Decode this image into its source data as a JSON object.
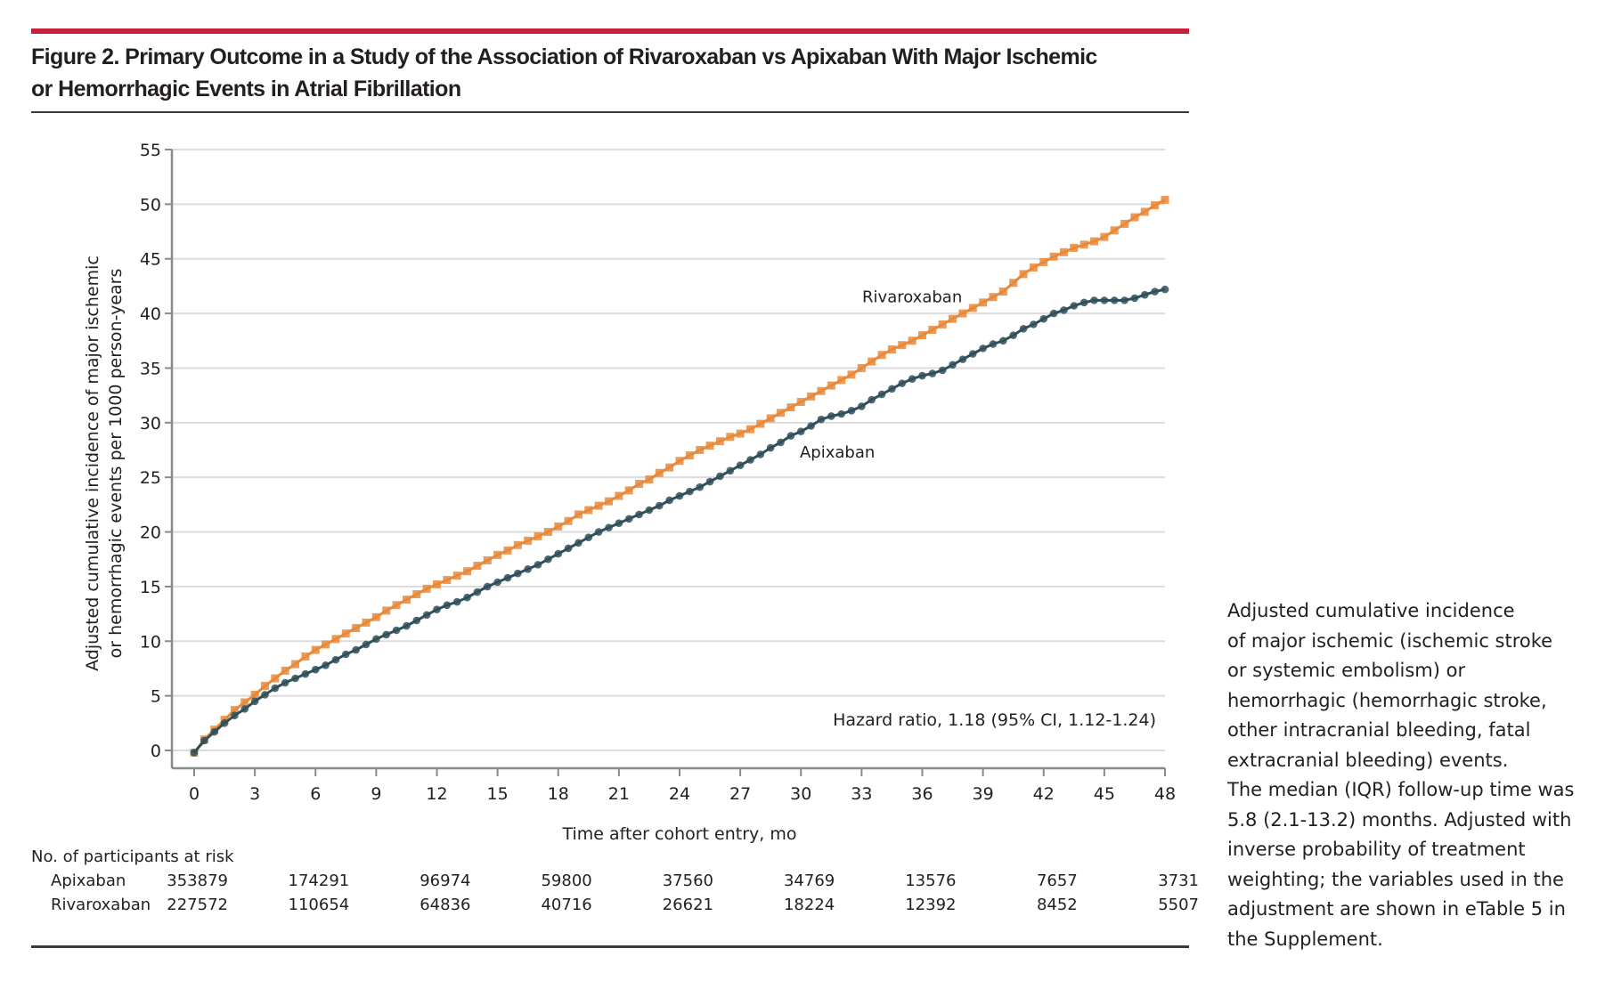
{
  "figure": {
    "title_line1": "Figure 2. Primary Outcome in a Study of the Association of Rivaroxaban vs Apixaban With Major Ischemic",
    "title_line2": "or Hemorrhagic Events in Atrial Fibrillation",
    "accent_color": "#c8203b",
    "caption": "Adjusted cumulative incidence of major ischemic (ischemic stroke or systemic embolism) or hemorrhagic (hemorrhagic stroke, other intracranial bleeding, fatal extracranial bleeding) events. The median (IQR) follow-up time was 5.8 (2.1-13.2) months. Adjusted with inverse probability of treatment weighting; the variables used in the adjustment are shown in eTable 5 in the Supplement.",
    "caption_lines": [
      "Adjusted cumulative incidence",
      "of major ischemic (ischemic stroke",
      "or systemic embolism) or",
      "hemorrhagic (hemorrhagic stroke,",
      "other intracranial bleeding, fatal",
      "extracranial bleeding) events.",
      "The median (IQR) follow-up time was",
      "5.8 (2.1-13.2) months. Adjusted with",
      "inverse probability of treatment",
      "weighting; the variables used in the",
      "adjustment are shown in eTable 5 in",
      "the Supplement."
    ]
  },
  "chart_data": {
    "type": "line",
    "title": "Figure 2. Primary Outcome in a Study of the Association of Rivaroxaban vs Apixaban With Major Ischemic or Hemorrhagic Events in Atrial Fibrillation",
    "xlabel": "Time after cohort entry, mo",
    "ylabel_line1": "Adjusted cumulative incidence of major ischemic",
    "ylabel_line2": "or hemorrhagic events per 1000 person-years",
    "xlim": [
      0,
      48
    ],
    "ylim": [
      0,
      55
    ],
    "x_ticks": [
      0,
      3,
      6,
      9,
      12,
      15,
      18,
      21,
      24,
      27,
      30,
      33,
      36,
      39,
      42,
      45,
      48
    ],
    "y_ticks": [
      0,
      5,
      10,
      15,
      20,
      25,
      30,
      35,
      40,
      45,
      50,
      55
    ],
    "grid": "horizontal",
    "annotation": "Hazard ratio, 1.18 (95% CI, 1.12-1.24)",
    "series": [
      {
        "name": "Rivaroxaban",
        "color": "#e8893a",
        "marker": "square",
        "label_at": [
          35.5,
          41.5
        ],
        "x": [
          0,
          0.5,
          1,
          1.5,
          2,
          2.5,
          3,
          3.5,
          4,
          4.5,
          5,
          5.5,
          6,
          6.5,
          7,
          7.5,
          8,
          8.5,
          9,
          9.5,
          10,
          10.5,
          11,
          11.5,
          12,
          12.5,
          13,
          13.5,
          14,
          14.5,
          15,
          15.5,
          16,
          16.5,
          17,
          17.5,
          18,
          18.5,
          19,
          19.5,
          20,
          20.5,
          21,
          21.5,
          22,
          22.5,
          23,
          23.5,
          24,
          24.5,
          25,
          25.5,
          26,
          26.5,
          27,
          27.5,
          28,
          28.5,
          29,
          29.5,
          30,
          30.5,
          31,
          31.5,
          32,
          32.5,
          33,
          33.5,
          34,
          34.5,
          35,
          35.5,
          36,
          36.5,
          37,
          37.5,
          38,
          38.5,
          39,
          39.5,
          40,
          40.5,
          41,
          41.5,
          42,
          42.5,
          43,
          43.5,
          44,
          44.5,
          45,
          45.5,
          46,
          46.5,
          47,
          47.5,
          48
        ],
        "y": [
          -0.2,
          1.0,
          1.9,
          2.8,
          3.7,
          4.4,
          5.1,
          5.9,
          6.6,
          7.3,
          7.9,
          8.6,
          9.2,
          9.7,
          10.2,
          10.7,
          11.2,
          11.7,
          12.2,
          12.8,
          13.3,
          13.8,
          14.3,
          14.8,
          15.2,
          15.6,
          16.0,
          16.4,
          16.9,
          17.4,
          17.9,
          18.3,
          18.8,
          19.2,
          19.6,
          20.0,
          20.5,
          21.0,
          21.6,
          22.0,
          22.4,
          22.8,
          23.3,
          23.8,
          24.4,
          24.8,
          25.4,
          25.9,
          26.5,
          27.0,
          27.5,
          27.9,
          28.3,
          28.7,
          29.0,
          29.4,
          29.9,
          30.4,
          30.9,
          31.4,
          31.9,
          32.4,
          32.9,
          33.4,
          33.9,
          34.4,
          35.0,
          35.6,
          36.2,
          36.7,
          37.1,
          37.5,
          38.0,
          38.5,
          39.0,
          39.5,
          40.0,
          40.5,
          41.0,
          41.5,
          42.0,
          42.8,
          43.6,
          44.2,
          44.7,
          45.2,
          45.6,
          46.0,
          46.3,
          46.6,
          47.0,
          47.6,
          48.2,
          48.8,
          49.3,
          49.9,
          50.4
        ]
      },
      {
        "name": "Apixaban",
        "color": "#2f4f5a",
        "marker": "circle",
        "label_at": [
          31.8,
          27.3
        ],
        "x": [
          0,
          0.5,
          1,
          1.5,
          2,
          2.5,
          3,
          3.5,
          4,
          4.5,
          5,
          5.5,
          6,
          6.5,
          7,
          7.5,
          8,
          8.5,
          9,
          9.5,
          10,
          10.5,
          11,
          11.5,
          12,
          12.5,
          13,
          13.5,
          14,
          14.5,
          15,
          15.5,
          16,
          16.5,
          17,
          17.5,
          18,
          18.5,
          19,
          19.5,
          20,
          20.5,
          21,
          21.5,
          22,
          22.5,
          23,
          23.5,
          24,
          24.5,
          25,
          25.5,
          26,
          26.5,
          27,
          27.5,
          28,
          28.5,
          29,
          29.5,
          30,
          30.5,
          31,
          31.5,
          32,
          32.5,
          33,
          33.5,
          34,
          34.5,
          35,
          35.5,
          36,
          36.5,
          37,
          37.5,
          38,
          38.5,
          39,
          39.5,
          40,
          40.5,
          41,
          41.5,
          42,
          42.5,
          43,
          43.5,
          44,
          44.5,
          45,
          45.5,
          46,
          46.5,
          47,
          47.5,
          48
        ],
        "y": [
          -0.2,
          0.9,
          1.7,
          2.5,
          3.2,
          3.8,
          4.5,
          5.1,
          5.7,
          6.2,
          6.6,
          7.0,
          7.4,
          7.8,
          8.3,
          8.8,
          9.2,
          9.7,
          10.2,
          10.6,
          11.0,
          11.4,
          11.9,
          12.4,
          12.9,
          13.3,
          13.6,
          14.0,
          14.5,
          15.0,
          15.4,
          15.8,
          16.2,
          16.6,
          17.0,
          17.5,
          18.0,
          18.5,
          19.0,
          19.5,
          20.0,
          20.4,
          20.8,
          21.2,
          21.6,
          22.0,
          22.4,
          22.9,
          23.3,
          23.7,
          24.1,
          24.6,
          25.1,
          25.6,
          26.1,
          26.6,
          27.1,
          27.7,
          28.2,
          28.8,
          29.2,
          29.7,
          30.3,
          30.6,
          30.8,
          31.1,
          31.5,
          32.1,
          32.6,
          33.1,
          33.6,
          34.0,
          34.3,
          34.5,
          34.8,
          35.3,
          35.8,
          36.3,
          36.8,
          37.2,
          37.5,
          38.0,
          38.6,
          39.0,
          39.5,
          40.0,
          40.3,
          40.7,
          41.0,
          41.2,
          41.2,
          41.2,
          41.2,
          41.4,
          41.7,
          42.0,
          42.2
        ]
      }
    ]
  },
  "risk_table": {
    "title": "No. of participants at risk",
    "time_points": [
      0,
      6,
      12,
      18,
      24,
      30,
      36,
      42,
      48
    ],
    "rows": [
      {
        "label": "Apixaban",
        "values": [
          "353879",
          "174291",
          "96974",
          "59800",
          "37560",
          "34769",
          "13576",
          "7657",
          "3731"
        ]
      },
      {
        "label": "Rivaroxaban",
        "values": [
          "227572",
          "110654",
          "64836",
          "40716",
          "26621",
          "18224",
          "12392",
          "8452",
          "5507"
        ]
      }
    ]
  }
}
